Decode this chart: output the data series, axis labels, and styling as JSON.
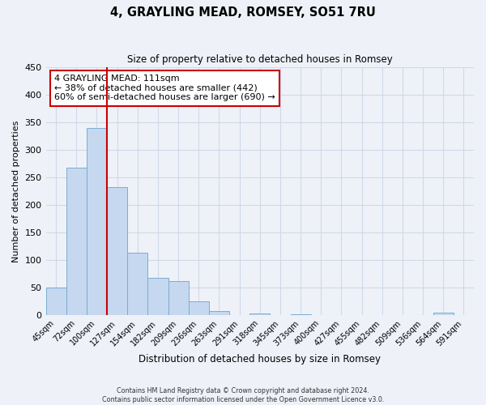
{
  "title": "4, GRAYLING MEAD, ROMSEY, SO51 7RU",
  "subtitle": "Size of property relative to detached houses in Romsey",
  "xlabel": "Distribution of detached houses by size in Romsey",
  "ylabel": "Number of detached properties",
  "categories": [
    "45sqm",
    "72sqm",
    "100sqm",
    "127sqm",
    "154sqm",
    "182sqm",
    "209sqm",
    "236sqm",
    "263sqm",
    "291sqm",
    "318sqm",
    "345sqm",
    "373sqm",
    "400sqm",
    "427sqm",
    "455sqm",
    "482sqm",
    "509sqm",
    "536sqm",
    "564sqm",
    "591sqm"
  ],
  "values": [
    50,
    267,
    340,
    232,
    113,
    68,
    62,
    25,
    7,
    0,
    3,
    0,
    2,
    0,
    0,
    0,
    0,
    0,
    0,
    4,
    0
  ],
  "bar_color": "#c5d8f0",
  "bar_edge_color": "#7aadcf",
  "grid_color": "#d0d8e8",
  "background_color": "#eef2f8",
  "vline_color": "#cc0000",
  "annotation_line1": "4 GRAYLING MEAD: 111sqm",
  "annotation_line2": "← 38% of detached houses are smaller (442)",
  "annotation_line3": "60% of semi-detached houses are larger (690) →",
  "annotation_box_color": "#ffffff",
  "annotation_box_edge_color": "#cc0000",
  "ylim": [
    0,
    450
  ],
  "yticks": [
    0,
    50,
    100,
    150,
    200,
    250,
    300,
    350,
    400,
    450
  ],
  "footer_line1": "Contains HM Land Registry data © Crown copyright and database right 2024.",
  "footer_line2": "Contains public sector information licensed under the Open Government Licence v3.0."
}
